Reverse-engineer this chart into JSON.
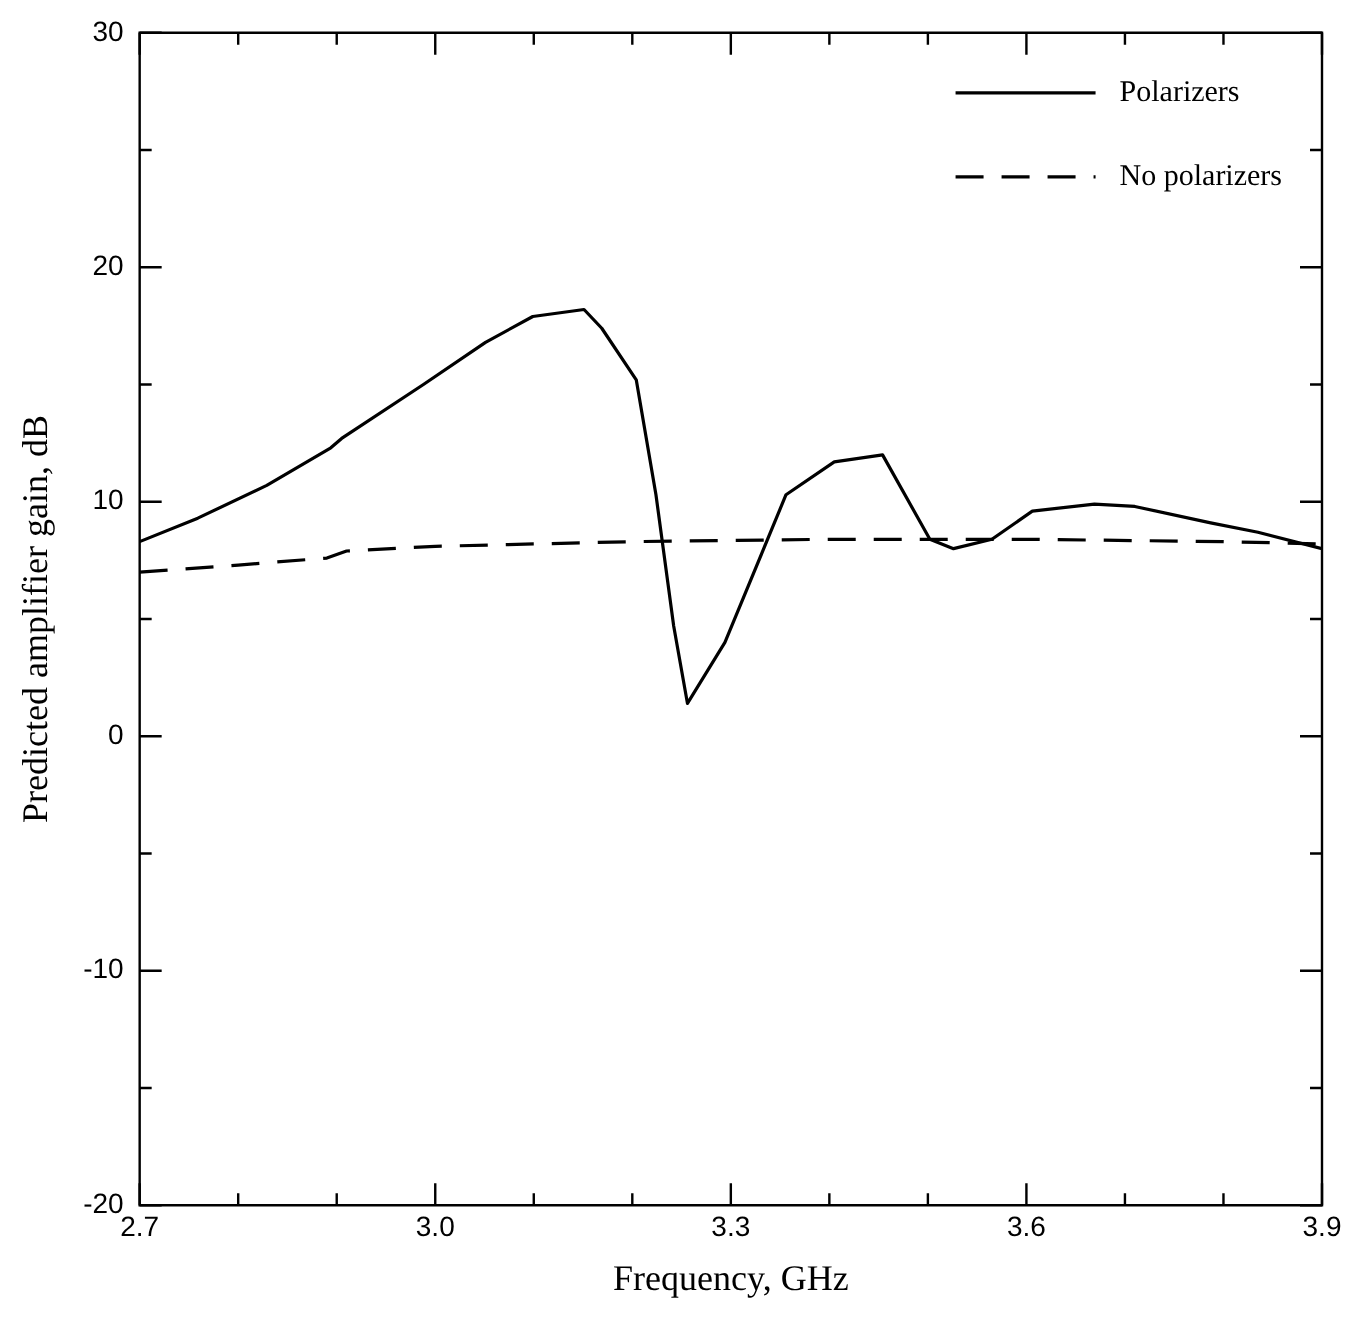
{
  "chart_data": {
    "type": "line",
    "xlabel": "Frequency, GHz",
    "ylabel": "Predicted amplifier gain, dB",
    "xlim": [
      2.7,
      3.9
    ],
    "ylim": [
      -20,
      30
    ],
    "xticks": [
      2.7,
      {
        "value": 2.8,
        "label": null
      },
      {
        "value": 2.9,
        "label": null
      },
      {
        "value": 3.0,
        "label": "3.0"
      },
      {
        "value": 3.1,
        "label": null
      },
      {
        "value": 3.2,
        "label": null
      },
      3.3,
      {
        "value": 3.4,
        "label": null
      },
      {
        "value": 3.5,
        "label": null
      },
      3.6,
      {
        "value": 3.7,
        "label": null
      },
      {
        "value": 3.8,
        "label": null
      },
      3.9
    ],
    "yticks": [
      -20,
      {
        "value": -15,
        "label": null
      },
      -10,
      {
        "value": -5,
        "label": null
      },
      0,
      {
        "value": 5,
        "label": null
      },
      10,
      {
        "value": 15,
        "label": null
      },
      20,
      {
        "value": 25,
        "label": null
      },
      30
    ],
    "grid": false,
    "legend": "top right",
    "marker": "none",
    "series": [
      {
        "name": "Polarizers",
        "color": "#000000",
        "line_style": "solid",
        "x": [
          2.7,
          2.759,
          2.829,
          2.894,
          2.905,
          2.988,
          3.051,
          3.099,
          3.151,
          3.169,
          3.204,
          3.224,
          3.242,
          3.256,
          3.294,
          3.356,
          3.405,
          3.454,
          3.502,
          3.526,
          3.565,
          3.606,
          3.669,
          3.71,
          3.787,
          3.835,
          3.9
        ],
        "values": [
          8.3,
          9.3,
          10.7,
          12.3,
          12.7,
          15.0,
          16.8,
          17.9,
          18.2,
          17.4,
          15.2,
          10.3,
          4.7,
          1.4,
          4.0,
          10.3,
          11.7,
          12.0,
          8.4,
          8.0,
          8.4,
          9.6,
          9.9,
          9.8,
          9.1,
          8.7,
          8.0
        ]
      },
      {
        "name": "No polarizers",
        "color": "#000000",
        "line_style": "dashed",
        "x": [
          2.7,
          2.8,
          2.89,
          2.91,
          3.0,
          3.2,
          3.4,
          3.6,
          3.8,
          3.9
        ],
        "values": [
          7.0,
          7.3,
          7.6,
          7.9,
          8.1,
          8.3,
          8.4,
          8.4,
          8.3,
          8.2
        ]
      }
    ]
  }
}
